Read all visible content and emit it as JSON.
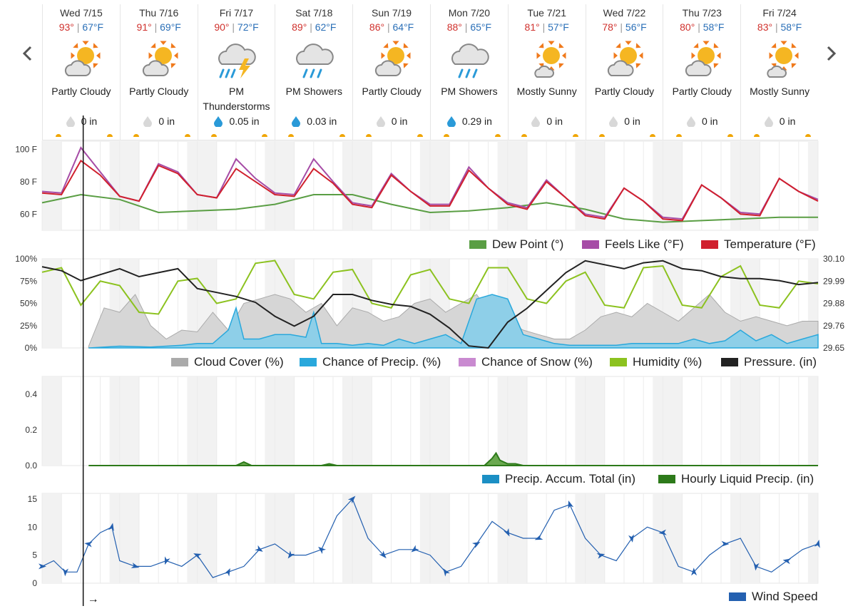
{
  "nav": {
    "prev_icon": "chevron-left-icon",
    "next_icon": "chevron-right-icon"
  },
  "days": [
    {
      "date": "Wed 7/15",
      "hi": "93°",
      "lo": "67°F",
      "icon": "partly-cloudy-icon",
      "condition": "Partly Cloudy",
      "precip": "0 in",
      "drop": "gray"
    },
    {
      "date": "Thu 7/16",
      "hi": "91°",
      "lo": "69°F",
      "icon": "partly-cloudy-icon",
      "condition": "Partly Cloudy",
      "precip": "0 in",
      "drop": "gray"
    },
    {
      "date": "Fri 7/17",
      "hi": "90°",
      "lo": "72°F",
      "icon": "thunderstorm-icon",
      "condition": "PM Thunderstorms",
      "precip": "0.05 in",
      "drop": "blue"
    },
    {
      "date": "Sat 7/18",
      "hi": "89°",
      "lo": "62°F",
      "icon": "showers-icon",
      "condition": "PM Showers",
      "precip": "0.03 in",
      "drop": "blue"
    },
    {
      "date": "Sun 7/19",
      "hi": "86°",
      "lo": "64°F",
      "icon": "partly-cloudy-icon",
      "condition": "Partly Cloudy",
      "precip": "0 in",
      "drop": "gray"
    },
    {
      "date": "Mon 7/20",
      "hi": "88°",
      "lo": "65°F",
      "icon": "showers-icon",
      "condition": "PM Showers",
      "precip": "0.29 in",
      "drop": "blue"
    },
    {
      "date": "Tue 7/21",
      "hi": "81°",
      "lo": "57°F",
      "icon": "mostly-sunny-icon",
      "condition": "Mostly Sunny",
      "precip": "0 in",
      "drop": "gray"
    },
    {
      "date": "Wed 7/22",
      "hi": "78°",
      "lo": "56°F",
      "icon": "partly-cloudy-icon",
      "condition": "Partly Cloudy",
      "precip": "0 in",
      "drop": "gray"
    },
    {
      "date": "Thu 7/23",
      "hi": "80°",
      "lo": "58°F",
      "icon": "partly-cloudy-icon",
      "condition": "Partly Cloudy",
      "precip": "0 in",
      "drop": "gray"
    },
    {
      "date": "Fri 7/24",
      "hi": "83°",
      "lo": "58°F",
      "icon": "mostly-sunny-icon",
      "condition": "Mostly Sunny",
      "precip": "0 in",
      "drop": "gray"
    }
  ],
  "colors": {
    "temperature": "#d0202e",
    "feels_like": "#a64ca6",
    "dew_point": "#5a9e44",
    "cloud_cover": "#aaaaaa",
    "precip_chance": "#29a8dc",
    "snow_chance": "#c98ad0",
    "humidity": "#8cc21f",
    "pressure": "#222222",
    "precip_accum": "#1b8fc4",
    "hourly_precip": "#2d7a1a",
    "wind": "#2460b0",
    "hi": "#d0312d",
    "lo": "#2a6fb7"
  },
  "chart_data": [
    {
      "type": "line",
      "y_ticks": [
        "100 F",
        "80 F",
        "60 F"
      ],
      "ylim": [
        50,
        105
      ],
      "x_unit": "day index (0 = Wed 7/15 midnight)",
      "series": [
        {
          "name": "Dew Point (°)",
          "x": [
            0,
            0.5,
            1,
            1.5,
            2,
            2.5,
            3,
            3.5,
            4,
            4.5,
            5,
            5.5,
            6,
            6.5,
            7,
            7.5,
            8,
            8.5,
            9,
            9.5,
            10
          ],
          "values": [
            67,
            72,
            69,
            61,
            62,
            63,
            66,
            72,
            72,
            66,
            61,
            62,
            64,
            67,
            63,
            57,
            55,
            56,
            57,
            58,
            58
          ]
        },
        {
          "name": "Feels Like (°F)",
          "x": [
            0,
            0.25,
            0.5,
            0.75,
            1,
            1.25,
            1.5,
            1.75,
            2,
            2.25,
            2.5,
            2.75,
            3,
            3.25,
            3.5,
            3.75,
            4,
            4.25,
            4.5,
            4.75,
            5,
            5.25,
            5.5,
            5.75,
            6,
            6.25,
            6.5,
            6.75,
            7,
            7.25,
            7.5,
            7.75,
            8,
            8.25,
            8.5,
            8.75,
            9,
            9.25,
            9.5,
            9.75,
            10
          ],
          "values": [
            74,
            73,
            101,
            86,
            71,
            68,
            91,
            86,
            72,
            70,
            94,
            82,
            73,
            72,
            94,
            80,
            67,
            65,
            85,
            74,
            66,
            66,
            89,
            76,
            67,
            64,
            81,
            70,
            60,
            58,
            76,
            68,
            58,
            57,
            78,
            70,
            61,
            60,
            82,
            74,
            69
          ]
        },
        {
          "name": "Temperature (°F)",
          "x": [
            0,
            0.25,
            0.5,
            0.75,
            1,
            1.25,
            1.5,
            1.75,
            2,
            2.25,
            2.5,
            2.75,
            3,
            3.25,
            3.5,
            3.75,
            4,
            4.25,
            4.5,
            4.75,
            5,
            5.25,
            5.5,
            5.75,
            6,
            6.25,
            6.5,
            6.75,
            7,
            7.25,
            7.5,
            7.75,
            8,
            8.25,
            8.5,
            8.75,
            9,
            9.25,
            9.5,
            9.75,
            10
          ],
          "values": [
            73,
            72,
            93,
            84,
            71,
            68,
            90,
            85,
            72,
            70,
            88,
            80,
            72,
            71,
            88,
            79,
            66,
            64,
            84,
            74,
            65,
            65,
            87,
            76,
            66,
            63,
            80,
            70,
            59,
            57,
            76,
            68,
            57,
            56,
            78,
            70,
            60,
            59,
            82,
            74,
            68
          ]
        }
      ],
      "legend": [
        "Dew Point (°)",
        "Feels Like (°F)",
        "Temperature (°F)"
      ]
    },
    {
      "type": "line",
      "y_ticks_left": [
        "100%",
        "75%",
        "50%",
        "25%",
        "0%"
      ],
      "y_ticks_right": [
        "30.10",
        "29.99",
        "29.88",
        "29.76",
        "29.65"
      ],
      "series": [
        {
          "name": "Cloud Cover (%)",
          "x": [
            0.6,
            0.8,
            1,
            1.2,
            1.4,
            1.6,
            1.8,
            2,
            2.2,
            2.4,
            2.6,
            2.8,
            3,
            3.2,
            3.4,
            3.6,
            3.8,
            4,
            4.2,
            4.4,
            4.6,
            4.8,
            5,
            5.2,
            5.4,
            5.6,
            5.8,
            6,
            6.2,
            6.4,
            6.6,
            6.8,
            7,
            7.2,
            7.4,
            7.6,
            7.8,
            8,
            8.2,
            8.4,
            8.6,
            8.8,
            9,
            9.2,
            9.4,
            9.6,
            9.8,
            10
          ],
          "values": [
            2,
            45,
            40,
            60,
            25,
            10,
            20,
            18,
            40,
            20,
            50,
            55,
            60,
            55,
            40,
            50,
            25,
            45,
            40,
            30,
            35,
            50,
            55,
            40,
            50,
            60,
            35,
            30,
            20,
            15,
            10,
            10,
            20,
            35,
            40,
            35,
            50,
            40,
            30,
            45,
            60,
            40,
            30,
            35,
            30,
            25,
            30,
            30
          ]
        },
        {
          "name": "Chance of Precip. (%)",
          "x": [
            0.6,
            1,
            1.4,
            1.8,
            2,
            2.2,
            2.4,
            2.5,
            2.6,
            2.8,
            3,
            3.2,
            3.4,
            3.5,
            3.6,
            3.8,
            4,
            4.2,
            4.4,
            4.6,
            4.8,
            5,
            5.2,
            5.4,
            5.6,
            5.8,
            6,
            6.2,
            6.4,
            6.6,
            6.8,
            7,
            7.2,
            7.4,
            7.6,
            7.8,
            8,
            8.2,
            8.4,
            8.6,
            8.8,
            9,
            9.2,
            9.4,
            9.6,
            9.8,
            10
          ],
          "values": [
            0,
            2,
            1,
            3,
            5,
            5,
            20,
            45,
            10,
            10,
            15,
            15,
            12,
            40,
            5,
            5,
            3,
            5,
            3,
            10,
            5,
            10,
            15,
            5,
            55,
            60,
            55,
            15,
            10,
            5,
            3,
            3,
            3,
            3,
            5,
            5,
            5,
            5,
            10,
            5,
            8,
            20,
            8,
            15,
            5,
            10,
            15
          ]
        },
        {
          "name": "Chance of Snow (%)",
          "x": [
            0,
            10
          ],
          "values": [
            0,
            0
          ]
        },
        {
          "name": "Humidity (%)",
          "x": [
            0,
            0.25,
            0.5,
            0.75,
            1,
            1.25,
            1.5,
            1.75,
            2,
            2.25,
            2.5,
            2.75,
            3,
            3.25,
            3.5,
            3.75,
            4,
            4.25,
            4.5,
            4.75,
            5,
            5.25,
            5.5,
            5.75,
            6,
            6.25,
            6.5,
            6.75,
            7,
            7.25,
            7.5,
            7.75,
            8,
            8.25,
            8.5,
            8.75,
            9,
            9.25,
            9.5,
            9.75,
            10
          ],
          "values": [
            85,
            90,
            48,
            75,
            70,
            40,
            38,
            75,
            78,
            50,
            55,
            95,
            98,
            60,
            55,
            85,
            88,
            50,
            45,
            82,
            88,
            55,
            50,
            90,
            90,
            55,
            50,
            75,
            85,
            48,
            45,
            90,
            92,
            48,
            45,
            80,
            92,
            48,
            45,
            75,
            72
          ]
        },
        {
          "name": "Pressure. (in)",
          "x": [
            0,
            0.25,
            0.5,
            0.75,
            1,
            1.25,
            1.5,
            1.75,
            2,
            2.25,
            2.5,
            2.75,
            3,
            3.25,
            3.5,
            3.75,
            4,
            4.25,
            4.5,
            4.75,
            5,
            5.25,
            5.5,
            5.75,
            6,
            6.25,
            6.5,
            6.75,
            7,
            7.25,
            7.5,
            7.75,
            8,
            8.25,
            8.5,
            8.75,
            9,
            9.25,
            9.5,
            9.75,
            10
          ],
          "values": [
            30.06,
            30.04,
            29.99,
            30.02,
            30.05,
            30.01,
            30.03,
            30.05,
            29.95,
            29.93,
            29.91,
            29.88,
            29.81,
            29.76,
            29.81,
            29.92,
            29.92,
            29.89,
            29.87,
            29.86,
            29.82,
            29.75,
            29.66,
            29.65,
            29.78,
            29.85,
            29.94,
            30.03,
            30.09,
            30.07,
            30.05,
            30.08,
            30.09,
            30.05,
            30.04,
            30.01,
            30.0,
            30.0,
            29.99,
            29.97,
            29.98
          ]
        }
      ],
      "legend": [
        "Cloud Cover (%)",
        "Chance of Precip. (%)",
        "Chance of Snow (%)",
        "Humidity (%)",
        "Pressure. (in)"
      ]
    },
    {
      "type": "area",
      "y_ticks": [
        "0.4",
        "0.2",
        "0.0"
      ],
      "ylim": [
        0,
        0.5
      ],
      "series": [
        {
          "name": "Precip. Accum. Total (in)",
          "x": [
            0,
            10
          ],
          "values": [
            0,
            0
          ]
        },
        {
          "name": "Hourly Liquid Precip. (in)",
          "x": [
            0.6,
            2.5,
            2.6,
            2.7,
            3.6,
            3.7,
            3.8,
            5.7,
            5.8,
            5.85,
            5.9,
            6.0,
            6.1,
            6.2,
            10
          ],
          "values": [
            0,
            0,
            0.02,
            0,
            0,
            0.01,
            0,
            0,
            0.04,
            0.07,
            0.03,
            0.01,
            0.01,
            0,
            0
          ]
        }
      ],
      "legend": [
        "Precip. Accum. Total (in)",
        "Hourly Liquid Precip. (in)"
      ]
    },
    {
      "type": "line",
      "y_ticks": [
        "15",
        "10",
        "5",
        "0"
      ],
      "ylim": [
        0,
        16
      ],
      "series": [
        {
          "name": "Wind Speed",
          "x": [
            0,
            0.15,
            0.3,
            0.45,
            0.6,
            0.75,
            0.9,
            1,
            1.2,
            1.4,
            1.6,
            1.8,
            2,
            2.2,
            2.4,
            2.6,
            2.8,
            3,
            3.2,
            3.4,
            3.6,
            3.8,
            4,
            4.2,
            4.4,
            4.6,
            4.8,
            5,
            5.2,
            5.4,
            5.6,
            5.8,
            6,
            6.2,
            6.4,
            6.6,
            6.8,
            7,
            7.2,
            7.4,
            7.6,
            7.8,
            8,
            8.2,
            8.4,
            8.6,
            8.8,
            9,
            9.2,
            9.4,
            9.6,
            9.8,
            10
          ],
          "values": [
            3,
            4,
            2,
            2,
            7,
            9,
            10,
            4,
            3,
            3,
            4,
            3,
            5,
            1,
            2,
            3,
            6,
            7,
            5,
            5,
            6,
            12,
            15,
            8,
            5,
            6,
            6,
            5,
            2,
            3,
            7,
            11,
            9,
            8,
            8,
            13,
            14,
            8,
            5,
            4,
            8,
            10,
            9,
            3,
            2,
            5,
            7,
            8,
            3,
            2,
            4,
            6,
            7
          ]
        }
      ],
      "legend": [
        "Wind Speed"
      ]
    }
  ],
  "legend_labels": {
    "dew_point": "Dew Point (°)",
    "feels_like": "Feels Like (°F)",
    "temperature": "Temperature (°F)",
    "cloud_cover": "Cloud Cover (%)",
    "precip_chance": "Chance of Precip. (%)",
    "snow_chance": "Chance of Snow (%)",
    "humidity": "Humidity (%)",
    "pressure": "Pressure. (in)",
    "precip_accum": "Precip. Accum. Total (in)",
    "hourly_precip": "Hourly Liquid Precip. (in)",
    "wind": "Wind Speed"
  },
  "current_time_arrow": "→"
}
